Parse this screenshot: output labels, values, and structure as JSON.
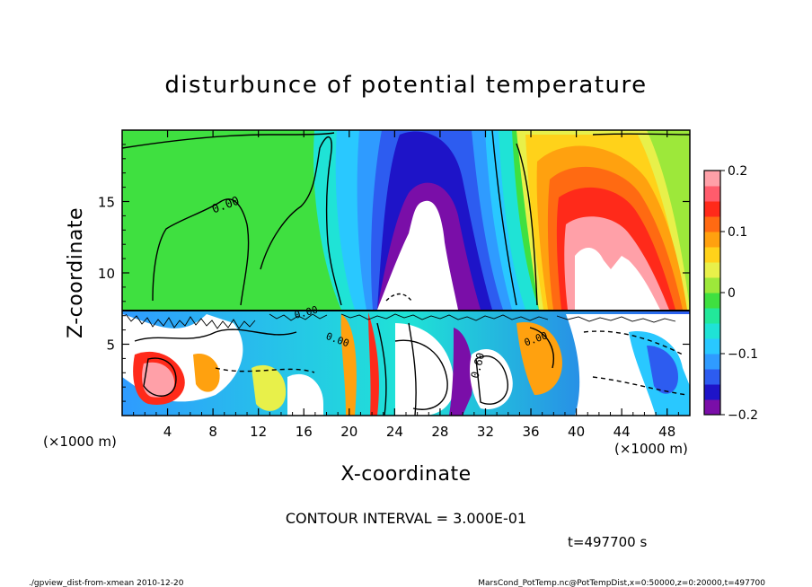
{
  "chart_data": {
    "type": "heatmap",
    "title": "disturbunce of potential temperature",
    "xlabel": "X-coordinate",
    "ylabel": "Z-coordinate",
    "x_unit": "(×1000 m)",
    "y_unit": "(×1000 m)",
    "xlim": [
      0,
      50
    ],
    "ylim": [
      0,
      20
    ],
    "x_ticks": [
      4,
      8,
      12,
      16,
      20,
      24,
      28,
      32,
      36,
      40,
      44,
      48
    ],
    "y_ticks": [
      5,
      10,
      15
    ],
    "colorbar": {
      "range": [
        -0.2,
        0.2
      ],
      "ticks": [
        0.2,
        0.1,
        0,
        -0.1,
        -0.2
      ],
      "tick_labels": [
        "0.2",
        "0.1",
        "0",
        "−0.1",
        "−0.2"
      ],
      "colors": [
        "#7a0ea8",
        "#1e14c8",
        "#2d5cf0",
        "#2f9bff",
        "#29c8ff",
        "#1fe3d6",
        "#22e89a",
        "#3fe040",
        "#9de83a",
        "#e8f04a",
        "#ffd21a",
        "#ffa10f",
        "#ff6a12",
        "#ff2a1a",
        "#ff5c6c",
        "#ffa0a8"
      ]
    },
    "contour_labels": [
      "0.00",
      "0.00",
      "0.00",
      "0.00",
      "0.60"
    ],
    "contour_interval": "CONTOUR INTERVAL = 3.000E-01",
    "time_label": "t=497700 s",
    "footer_left": "./gpview_dist-from-xmean  2010-12-20",
    "footer_right": "MarsCond_PotTemp.nc@PotTempDist,x=0:50000,z=0:20000,t=497700"
  }
}
